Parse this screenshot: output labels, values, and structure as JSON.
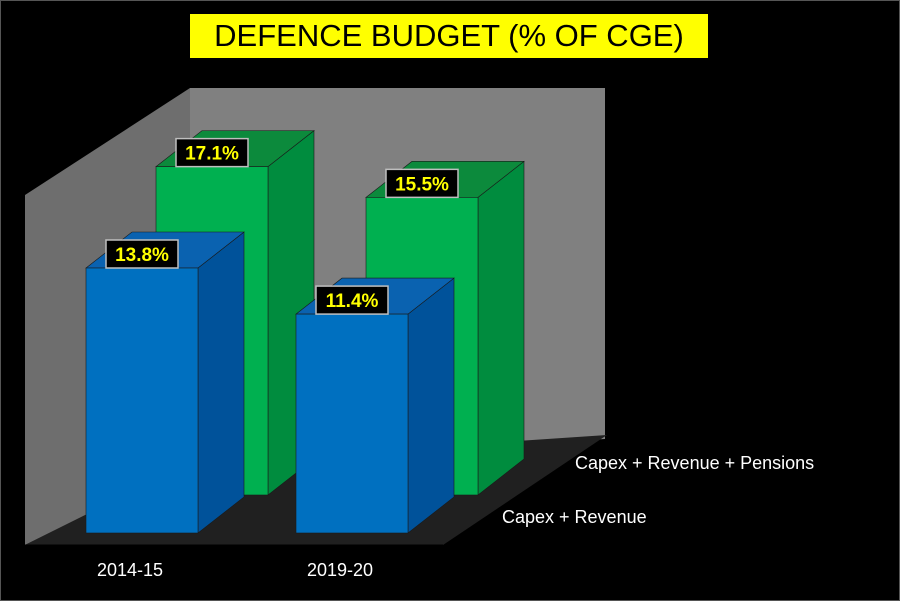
{
  "chart_data": {
    "type": "bar",
    "style": "3d-clustered-depth",
    "title": "DEFENCE BUDGET (% OF CGE)",
    "categories": [
      "2014-15",
      "2019-20"
    ],
    "series": [
      {
        "name": "Capex + Revenue + Pensions",
        "values": [
          17.1,
          15.5
        ],
        "labels": [
          "17.1%",
          "15.5%"
        ]
      },
      {
        "name": "Capex + Revenue",
        "values": [
          13.8,
          11.4
        ],
        "labels": [
          "13.8%",
          "11.4%"
        ]
      }
    ],
    "ylim": [
      0,
      20
    ],
    "xlabel": "",
    "ylabel": "",
    "grid": false,
    "colors": {
      "background": "#000000",
      "title_bg": "#ffff00",
      "wall": "#808080",
      "floor": "#202020",
      "pensions_front": "#00b050",
      "pensions_side": "#008c3e",
      "pensions_top": "#0c8a3c",
      "revenue_front": "#0070c0",
      "revenue_side": "#00529a",
      "revenue_top": "#0a62b0",
      "label_box": "#000000",
      "label_text": "#ffff00",
      "axis_text": "#ffffff"
    }
  }
}
